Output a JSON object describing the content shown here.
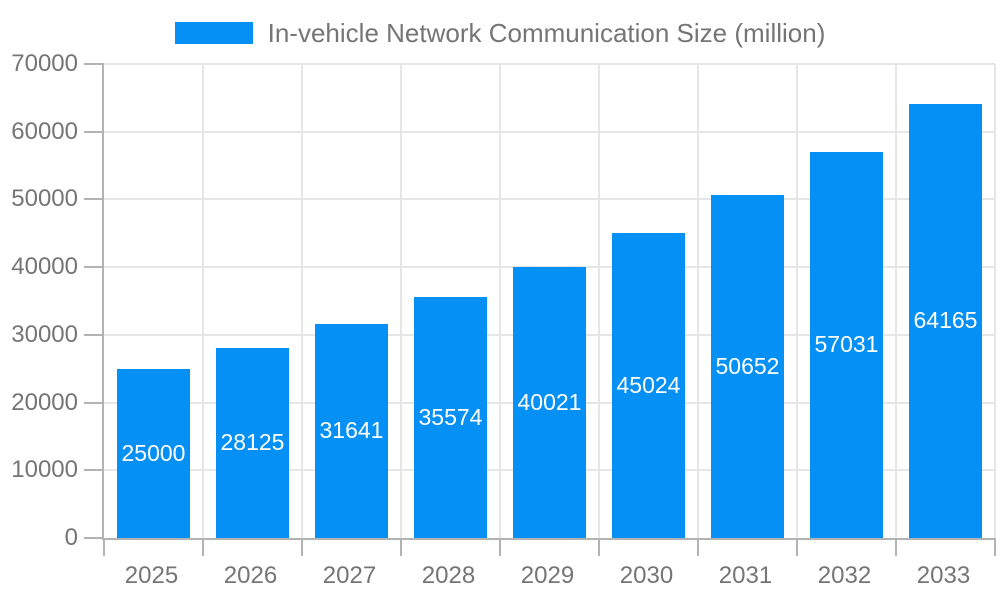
{
  "legend": {
    "label": "In-vehicle Network Communication Size (million)"
  },
  "colors": {
    "bar": "#0590F5",
    "axis_text": "#757575",
    "grid": "#E6E6E6",
    "axis_line": "#B3B3B3",
    "value_label": "#FFFFFF",
    "background": "#FFFFFF"
  },
  "chart_data": {
    "type": "bar",
    "title": "In-vehicle Network Communication Size (million)",
    "categories": [
      "2025",
      "2026",
      "2027",
      "2028",
      "2029",
      "2030",
      "2031",
      "2032",
      "2033"
    ],
    "values": [
      25000,
      28125,
      31641,
      35574,
      40021,
      45024,
      50652,
      57031,
      64165
    ],
    "value_labels": [
      "25000",
      "28125",
      "31641",
      "35574",
      "40021",
      "45024",
      "50652",
      "57031",
      "64165"
    ],
    "value_label_position": "inside-center",
    "xlabel": "",
    "ylabel": "",
    "ylim": [
      0,
      70000
    ],
    "ytick_step": 10000,
    "ytick_labels": [
      "0",
      "10000",
      "20000",
      "30000",
      "40000",
      "50000",
      "60000",
      "70000"
    ],
    "grid": true,
    "legend_position": "top"
  }
}
